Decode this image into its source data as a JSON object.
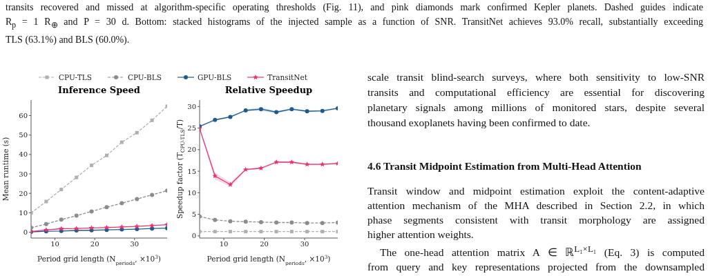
{
  "chart_data": [
    {
      "type": "line",
      "title": "Inference Speed",
      "xlabel": "Period grid length (N$_{periods}$, ×10$^{3}$)",
      "ylabel": "Mean runtime (s)",
      "x": [
        4,
        7.8,
        11.6,
        15.4,
        19.2,
        23,
        26.8,
        30.6,
        34.4,
        38.2
      ],
      "xlim": [
        4,
        38.2
      ],
      "xticks": [
        10,
        20,
        30
      ],
      "ylim": [
        -3,
        68
      ],
      "yticks": [
        0,
        10,
        20,
        30,
        40,
        50,
        60
      ],
      "legend": "top",
      "series": [
        {
          "name": "CPU-TLS",
          "color": "#b0b0b0",
          "marker": "square",
          "line_style": "dashed",
          "values": [
            9.9,
            15.8,
            22.0,
            28.2,
            34.4,
            39.5,
            46.3,
            51.2,
            57.6,
            64.8
          ]
        },
        {
          "name": "CPU-BLS",
          "color": "#8c8c8c",
          "marker": "circle",
          "line_style": "dashed",
          "values": [
            2.3,
            4.2,
            6.5,
            8.5,
            10.7,
            12.9,
            14.9,
            17.1,
            19.2,
            21.4
          ]
        },
        {
          "name": "GPU-BLS",
          "color": "#1f5a8c",
          "marker": "circle",
          "line_style": "solid",
          "values": [
            0.2,
            0.5,
            0.6,
            0.9,
            1.0,
            1.2,
            1.4,
            1.6,
            1.9,
            2.1
          ]
        },
        {
          "name": "TransitNet",
          "color": "#e8336e",
          "marker": "star",
          "line_style": "solid",
          "values": [
            0.3,
            1.2,
            1.8,
            1.9,
            2.2,
            2.4,
            2.7,
            3.0,
            3.4,
            3.9
          ]
        }
      ]
    },
    {
      "type": "line",
      "title": "Relative Speedup",
      "xlabel": "Period grid length (N$_{periods}$, ×10$^{3}$)",
      "ylabel": "Speedup factor (T$_{CPU-TLS}$/T)",
      "x": [
        4,
        7.8,
        11.6,
        15.4,
        19.2,
        23,
        26.8,
        30.6,
        34.4,
        38.2
      ],
      "xlim": [
        4,
        38.2
      ],
      "xticks": [
        10,
        20,
        30
      ],
      "ylim": [
        -0.5,
        31.5
      ],
      "yticks": [
        0,
        5,
        10,
        15,
        20,
        25,
        30
      ],
      "series": [
        {
          "color": "#b0b0b0",
          "marker": "square",
          "line_style": "dashed",
          "values": [
            1.0,
            1.0,
            1.0,
            1.0,
            1.0,
            1.0,
            1.0,
            1.0,
            1.0,
            1.0
          ]
        },
        {
          "color": "#8c8c8c",
          "marker": "circle",
          "line_style": "dashed",
          "values": [
            4.5,
            3.7,
            3.4,
            3.3,
            3.2,
            3.1,
            3.1,
            3.0,
            3.0,
            3.1
          ]
        },
        {
          "color": "#1f5a8c",
          "marker": "circle",
          "line_style": "solid",
          "values": [
            25.4,
            26.9,
            27.6,
            29.1,
            29.4,
            28.7,
            29.4,
            28.9,
            29.0,
            29.6
          ],
          "lower": [
            25.2,
            26.7,
            27.4,
            28.9,
            29.0,
            28.4,
            29.2,
            28.7,
            28.8,
            29.4
          ],
          "upper": [
            25.6,
            27.1,
            27.8,
            29.3,
            29.8,
            29.0,
            29.6,
            29.1,
            29.2,
            29.8
          ]
        },
        {
          "color": "#e8336e",
          "marker": "star",
          "line_style": "solid",
          "values": [
            24.9,
            13.9,
            11.9,
            15.4,
            15.7,
            17.1,
            17.1,
            16.6,
            16.6,
            16.8
          ],
          "lower": [
            24.7,
            13.1,
            11.4,
            15.2,
            15.5,
            16.9,
            16.9,
            16.4,
            16.4,
            16.6
          ],
          "upper": [
            25.1,
            14.7,
            12.4,
            15.6,
            15.9,
            17.3,
            17.3,
            16.8,
            16.8,
            17.0
          ]
        }
      ]
    },
    {
      "type": "other",
      "title": "4.6  Transit Midpoint Estimation from Multi-Head Attention",
      "annotations": [
        "transits recovered and missed at algorithm-specific operating thresholds (Fig. 11), and pink diamonds mark confirmed Kepler planets. Dashed guides indicate",
        "R$_{p}$ = 1 R$_{⊕}$ and P = 30 d. Bottom: stacked histograms of the injected sample as a function of SNR. TransitNet achieves 93.0% recall, substantially exceeding",
        "TLS (63.1%) and BLS (60.0%).",
        "scale transit blind-search surveys, where both sensitivity to low-SNR",
        "transits and computational efficiency are essential for discovering",
        "planetary signals among millions of monitored stars, despite several",
        "thousand exoplanets having been confirmed to date.",
        "Transit window and midpoint estimation exploit the content-adaptive",
        "attention mechanism of the MHA described in Section 2.2, in which",
        "phase segments consistent with transit morphology are assigned",
        "higher attention weights.",
        "The one-head attention matrix A ∈ ℝ$^{L₁×L₁}$ (Eq. 3) is computed",
        "from query and key representations projected from the downsampled"
      ]
    }
  ]
}
